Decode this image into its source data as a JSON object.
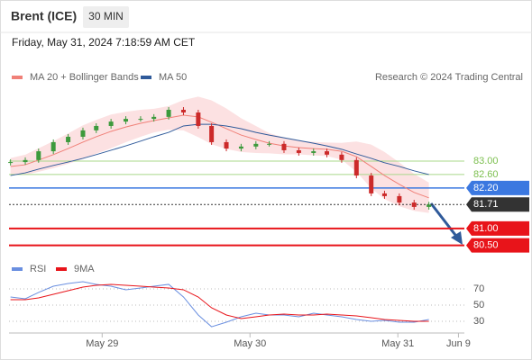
{
  "header": {
    "instrument": "Brent (ICE)",
    "timeframe": "30 MIN",
    "timestamp": "Friday, May 31, 2024 7:18:59 AM CET"
  },
  "chart_data": [
    {
      "type": "candlestick",
      "attribution": "Research © 2024 Trading Central",
      "x": [
        28.38,
        28.48,
        28.57,
        28.67,
        28.77,
        28.87,
        28.96,
        29.06,
        29.16,
        29.26,
        29.35,
        29.45,
        29.55,
        29.65,
        29.74,
        29.84,
        29.94,
        30.04,
        30.13,
        30.23,
        30.33,
        30.43,
        30.52,
        30.62,
        30.72,
        30.82,
        30.91,
        31.01,
        31.11,
        31.21
      ],
      "open": [
        82.95,
        82.97,
        83.03,
        83.29,
        83.56,
        83.72,
        83.91,
        84.04,
        84.17,
        84.25,
        84.25,
        84.31,
        84.52,
        84.44,
        84.04,
        83.56,
        83.37,
        83.43,
        83.51,
        83.51,
        83.32,
        83.24,
        83.29,
        83.19,
        83.03,
        82.57,
        82.04,
        81.96,
        81.77,
        81.64
      ],
      "high": [
        83.05,
        83.11,
        83.37,
        83.64,
        83.8,
        83.99,
        84.12,
        84.25,
        84.33,
        84.33,
        84.39,
        84.6,
        84.6,
        84.52,
        84.12,
        83.64,
        83.51,
        83.59,
        83.59,
        83.59,
        83.4,
        83.37,
        83.37,
        83.27,
        83.11,
        82.65,
        82.12,
        82.04,
        81.85,
        81.79
      ],
      "low": [
        82.87,
        82.89,
        82.95,
        83.21,
        83.48,
        83.64,
        83.83,
        83.96,
        84.09,
        84.17,
        84.17,
        84.23,
        84.36,
        83.96,
        83.48,
        83.29,
        83.29,
        83.35,
        83.43,
        83.24,
        83.16,
        83.16,
        83.11,
        82.95,
        82.49,
        81.96,
        81.88,
        81.69,
        81.56,
        81.56
      ],
      "close": [
        82.97,
        83.03,
        83.29,
        83.56,
        83.72,
        83.91,
        84.04,
        84.17,
        84.25,
        84.25,
        84.31,
        84.52,
        84.44,
        84.04,
        83.56,
        83.37,
        83.43,
        83.51,
        83.51,
        83.32,
        83.24,
        83.29,
        83.19,
        83.03,
        82.57,
        82.04,
        81.96,
        81.77,
        81.64,
        81.71
      ],
      "up_color": "#3c9a3c",
      "down_color": "#cc2a2a",
      "series": [
        {
          "name": "MA 20 + Bollinger Bands",
          "color": "#f08078",
          "values": [
            82.84,
            82.89,
            83.03,
            83.19,
            83.37,
            83.56,
            83.72,
            83.88,
            84.01,
            84.12,
            84.2,
            84.28,
            84.36,
            84.31,
            84.15,
            83.96,
            83.77,
            83.64,
            83.53,
            83.45,
            83.4,
            83.37,
            83.35,
            83.29,
            83.13,
            82.84,
            82.57,
            82.31,
            82.07,
            81.91
          ]
        },
        {
          "name": "MA 50",
          "color": "#2f5a9a",
          "values": [
            82.57,
            82.65,
            82.76,
            82.87,
            82.97,
            83.08,
            83.19,
            83.32,
            83.45,
            83.59,
            83.72,
            83.85,
            84.04,
            84.09,
            84.09,
            84.04,
            83.96,
            83.85,
            83.77,
            83.69,
            83.61,
            83.53,
            83.45,
            83.35,
            83.21,
            83.08,
            82.95,
            82.84,
            82.71,
            82.6
          ]
        }
      ],
      "bands": {
        "color": "#fbd9db",
        "upper": [
          83.09,
          83.19,
          83.38,
          83.59,
          83.82,
          84.06,
          84.22,
          84.38,
          84.46,
          84.52,
          84.55,
          84.63,
          84.81,
          84.91,
          84.8,
          84.56,
          84.27,
          84.04,
          83.83,
          83.7,
          83.6,
          83.57,
          83.55,
          83.54,
          83.58,
          83.49,
          83.27,
          82.96,
          82.62,
          82.36
        ],
        "lower": [
          82.59,
          82.59,
          82.68,
          82.79,
          82.92,
          83.06,
          83.22,
          83.38,
          83.56,
          83.72,
          83.85,
          83.93,
          83.91,
          83.71,
          83.5,
          83.36,
          83.27,
          83.24,
          83.23,
          83.2,
          83.2,
          83.17,
          83.15,
          83.04,
          82.68,
          82.19,
          81.87,
          81.66,
          81.52,
          81.46
        ]
      },
      "levels": [
        {
          "value": 83.0,
          "label": "83.00",
          "color": "#a8d88a",
          "line_style": "solid"
        },
        {
          "value": 82.6,
          "label": "82.60",
          "color": "#a8d88a",
          "line_style": "solid"
        },
        {
          "value": 82.2,
          "label": "82.20",
          "color": "#3b78e0",
          "line_style": "solid"
        },
        {
          "value": 81.71,
          "label": "81.71",
          "color": "#333333",
          "line_style": "dotted"
        },
        {
          "value": 81.0,
          "label": "81.00",
          "color": "#e8141a",
          "line_style": "solid"
        },
        {
          "value": 80.5,
          "label": "80.50",
          "color": "#e8141a",
          "line_style": "solid"
        }
      ],
      "xlim": [
        28.37,
        31.45
      ],
      "ylim": [
        80.17,
        85.24
      ]
    },
    {
      "type": "line",
      "x": [
        28.38,
        28.48,
        28.57,
        28.67,
        28.77,
        28.87,
        28.96,
        29.06,
        29.16,
        29.26,
        29.35,
        29.45,
        29.55,
        29.65,
        29.74,
        29.84,
        29.94,
        30.04,
        30.13,
        30.23,
        30.33,
        30.43,
        30.52,
        30.62,
        30.72,
        30.82,
        30.91,
        31.01,
        31.11,
        31.21
      ],
      "series": [
        {
          "name": "RSI",
          "color": "#6a8fe0",
          "values": [
            60,
            57.8,
            65.6,
            73.3,
            76.7,
            78.9,
            75.6,
            73.3,
            68.9,
            71.1,
            73.3,
            75.6,
            60,
            37.8,
            23.3,
            28.9,
            35.6,
            40,
            37.8,
            37.8,
            35.6,
            40,
            37.8,
            35.6,
            32.2,
            30,
            31.1,
            28.9,
            28.9,
            32.2
          ]
        },
        {
          "name": "9MA",
          "color": "#e8141a",
          "values": [
            56.7,
            56.7,
            58.9,
            63.3,
            67.8,
            72.2,
            74.4,
            75.6,
            74.4,
            73.3,
            72.2,
            71.1,
            68.9,
            60,
            46.7,
            37.8,
            33.3,
            35.6,
            37.8,
            38.9,
            37.8,
            37.8,
            38.9,
            37.8,
            36.7,
            34.4,
            32.2,
            31.1,
            30,
            30
          ]
        }
      ],
      "xlim": [
        28.37,
        31.45
      ],
      "ylim": [
        17.8,
        82.2
      ],
      "yticks": [
        70,
        50,
        30
      ],
      "xticks": [
        {
          "value": 29,
          "label": "May 29"
        },
        {
          "value": 30,
          "label": "May 30"
        },
        {
          "value": 31,
          "label": "May 31"
        },
        {
          "value": 31.41,
          "label": "Jun 9"
        }
      ]
    }
  ]
}
